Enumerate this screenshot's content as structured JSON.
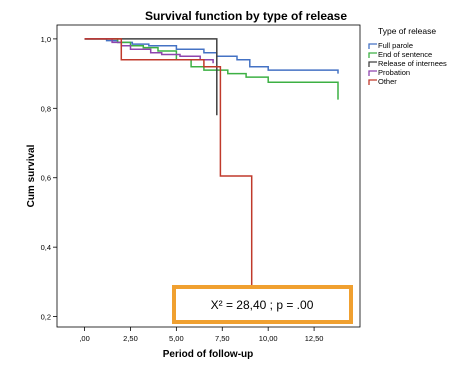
{
  "chart_data": {
    "type": "line",
    "title": "Survival function by type of release",
    "xlabel": "Period of follow-up",
    "ylabel": "Cum survival",
    "xlim": [
      -1.5,
      15.0
    ],
    "ylim": [
      0.17,
      1.04
    ],
    "x_ticks": [
      0,
      2.5,
      5,
      7.5,
      10,
      12.5
    ],
    "x_tick_labels": [
      ",00",
      "2,50",
      "5,00",
      "7,50",
      "10,00",
      "12,50"
    ],
    "y_ticks": [
      0.2,
      0.4,
      0.6,
      0.8,
      1.0
    ],
    "y_tick_labels": [
      "0,2",
      "0,4",
      "0,6",
      "0,8",
      "1,0"
    ],
    "grid": false,
    "legend": {
      "title": "Type of release",
      "placement": "right"
    },
    "annotation": "X² = 28,40 ; p = .00",
    "series": [
      {
        "name": "Full parole",
        "color": "#4472c4",
        "x": [
          0,
          1.2,
          1.8,
          2.6,
          3.5,
          5.0,
          6.5,
          7.2,
          8.3,
          9.0,
          10.0,
          13.8
        ],
        "y": [
          1.0,
          0.995,
          0.99,
          0.985,
          0.98,
          0.97,
          0.96,
          0.95,
          0.94,
          0.92,
          0.91,
          0.9
        ]
      },
      {
        "name": "End of sentence",
        "color": "#3cb043",
        "x": [
          0,
          1.8,
          2.5,
          3.2,
          4.0,
          5.0,
          5.8,
          6.5,
          7.8,
          8.8,
          10.0,
          13.8
        ],
        "y": [
          1.0,
          0.99,
          0.98,
          0.975,
          0.965,
          0.94,
          0.92,
          0.91,
          0.9,
          0.89,
          0.875,
          0.825
        ]
      },
      {
        "name": "Release of internees",
        "color": "#404040",
        "x": [
          0,
          7.2,
          7.2
        ],
        "y": [
          1.0,
          1.0,
          0.78
        ]
      },
      {
        "name": "Probation",
        "color": "#8e44ad",
        "x": [
          0,
          1.5,
          2.0,
          2.5,
          3.6,
          4.2,
          5.2,
          6.3,
          7.0
        ],
        "y": [
          1.0,
          0.99,
          0.98,
          0.97,
          0.96,
          0.955,
          0.95,
          0.94,
          0.93
        ]
      },
      {
        "name": "Other",
        "color": "#c0392b",
        "x": [
          0,
          2.0,
          6.5,
          7.4,
          9.1,
          9.1
        ],
        "y": [
          1.0,
          0.94,
          0.92,
          0.605,
          0.605,
          0.28
        ]
      }
    ]
  }
}
